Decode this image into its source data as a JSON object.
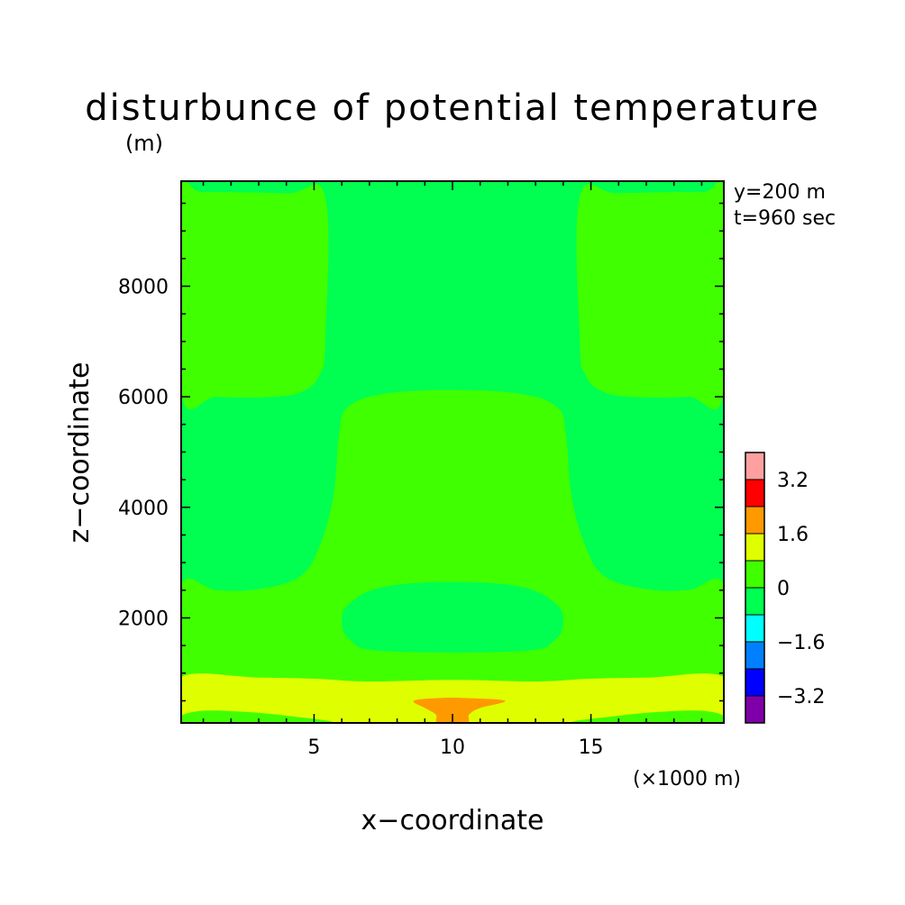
{
  "chart_data": {
    "type": "heatmap",
    "title": "disturbunce of potential temperature",
    "unit_label": "(m)",
    "xlabel": "x−coordinate",
    "ylabel": "z−coordinate",
    "x_unit": "(×1000 m)",
    "annotations": [
      "y=200 m",
      "t=960 sec"
    ],
    "xlim": [
      0.2,
      19.8
    ],
    "ylim": [
      100,
      9900
    ],
    "x_ticks": [
      {
        "value": 5,
        "label": "5"
      },
      {
        "value": 10,
        "label": "10"
      },
      {
        "value": 15,
        "label": "15"
      }
    ],
    "y_ticks": [
      {
        "value": 2000,
        "label": "2000"
      },
      {
        "value": 4000,
        "label": "4000"
      },
      {
        "value": 6000,
        "label": "6000"
      },
      {
        "value": 8000,
        "label": "8000"
      }
    ],
    "levels": [
      -4.0,
      -3.2,
      -2.4,
      -1.6,
      -0.8,
      0,
      0.8,
      1.6,
      2.4,
      3.2,
      4.0
    ],
    "colors": [
      "#7f00a9",
      "#0000ff",
      "#0080ff",
      "#00ffff",
      "#00ff50",
      "#40ff00",
      "#dfff00",
      "#ff9900",
      "#ff0000",
      "#ffa0a0"
    ],
    "colorbar_labels": [
      {
        "value": 3.2,
        "label": "3.2"
      },
      {
        "value": 1.6,
        "label": "1.6"
      },
      {
        "value": 0,
        "label": "0"
      },
      {
        "value": -1.6,
        "label": "−1.6"
      },
      {
        "value": -3.2,
        "label": "−3.2"
      }
    ],
    "background_level": 4,
    "regions": [
      {
        "name": "upper-left-warm",
        "level": 5,
        "points": [
          [
            0.2,
            9650
          ],
          [
            1.0,
            9700
          ],
          [
            4.0,
            9680
          ],
          [
            5.4,
            9620
          ],
          [
            5.4,
            7000
          ],
          [
            5.2,
            6400
          ],
          [
            4.6,
            6100
          ],
          [
            3.5,
            6000
          ],
          [
            1.5,
            6000
          ],
          [
            0.2,
            6080
          ]
        ]
      },
      {
        "name": "upper-right-warm",
        "level": 5,
        "points": [
          [
            19.8,
            9650
          ],
          [
            19.0,
            9700
          ],
          [
            16.0,
            9680
          ],
          [
            14.6,
            9620
          ],
          [
            14.6,
            7000
          ],
          [
            14.8,
            6400
          ],
          [
            15.4,
            6100
          ],
          [
            16.5,
            6000
          ],
          [
            18.5,
            6000
          ],
          [
            19.8,
            6080
          ]
        ]
      },
      {
        "name": "lower-warm",
        "level": 5,
        "points": [
          [
            0.2,
            2600
          ],
          [
            1.5,
            2500
          ],
          [
            3.0,
            2520
          ],
          [
            4.5,
            2750
          ],
          [
            5.2,
            3300
          ],
          [
            5.7,
            4200
          ],
          [
            5.9,
            5300
          ],
          [
            6.2,
            5800
          ],
          [
            7.5,
            6050
          ],
          [
            10,
            6120
          ],
          [
            12.5,
            6050
          ],
          [
            13.8,
            5800
          ],
          [
            14.1,
            5300
          ],
          [
            14.3,
            4200
          ],
          [
            14.8,
            3300
          ],
          [
            15.5,
            2750
          ],
          [
            17.0,
            2520
          ],
          [
            18.5,
            2500
          ],
          [
            19.8,
            2600
          ],
          [
            19.8,
            880
          ],
          [
            0.2,
            880
          ]
        ]
      },
      {
        "name": "mid-cool-pocket",
        "level": 4,
        "points": [
          [
            6.0,
            1950
          ],
          [
            6.3,
            2270
          ],
          [
            7.5,
            2560
          ],
          [
            10,
            2650
          ],
          [
            12.5,
            2560
          ],
          [
            13.7,
            2270
          ],
          [
            14.0,
            1950
          ],
          [
            13.7,
            1600
          ],
          [
            12.5,
            1400
          ],
          [
            7.5,
            1400
          ],
          [
            6.3,
            1600
          ]
        ]
      },
      {
        "name": "surface-layer",
        "level": 6,
        "points": [
          [
            0.2,
            930
          ],
          [
            3.0,
            920
          ],
          [
            5.0,
            900
          ],
          [
            7.0,
            850
          ],
          [
            10,
            880
          ],
          [
            13.0,
            850
          ],
          [
            15.0,
            900
          ],
          [
            17.0,
            920
          ],
          [
            19.8,
            930
          ],
          [
            19.8,
            100
          ],
          [
            0.2,
            100
          ]
        ]
      },
      {
        "name": "left-corner-pocket",
        "level": 5,
        "points": [
          [
            0.2,
            230
          ],
          [
            1.0,
            320
          ],
          [
            2.5,
            300
          ],
          [
            4.0,
            230
          ],
          [
            5.5,
            100
          ],
          [
            0.2,
            100
          ]
        ]
      },
      {
        "name": "right-corner-pocket",
        "level": 5,
        "points": [
          [
            19.8,
            230
          ],
          [
            19.0,
            320
          ],
          [
            17.5,
            300
          ],
          [
            16.0,
            230
          ],
          [
            14.5,
            100
          ],
          [
            19.8,
            100
          ]
        ]
      },
      {
        "name": "surface-hot-spot",
        "level": 7,
        "points": [
          [
            8.6,
            500
          ],
          [
            9.5,
            550
          ],
          [
            10.5,
            550
          ],
          [
            11.9,
            500
          ],
          [
            11.0,
            370
          ],
          [
            10.6,
            250
          ],
          [
            10.5,
            100
          ],
          [
            9.5,
            100
          ],
          [
            9.4,
            250
          ],
          [
            9.0,
            370
          ]
        ]
      }
    ]
  }
}
